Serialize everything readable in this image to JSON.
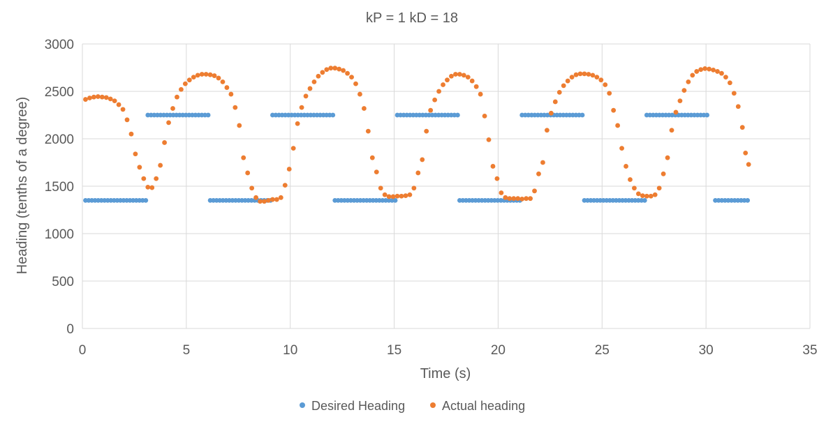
{
  "chart_data": {
    "type": "scatter",
    "title": "kP = 1 kD = 18",
    "xlabel": "Time (s)",
    "ylabel": "Heading (tenths of a degree)",
    "xlim": [
      0,
      35
    ],
    "ylim": [
      0,
      3000
    ],
    "xticks": [
      0,
      5,
      10,
      15,
      20,
      25,
      30,
      35
    ],
    "yticks": [
      0,
      500,
      1000,
      1500,
      2000,
      2500,
      3000
    ],
    "grid": true,
    "legend_position": "bottom",
    "series": [
      {
        "name": "Desired Heading",
        "color": "#5b9bd5",
        "segments": [
          {
            "x_start": 0.15,
            "x_end": 3.05,
            "y": 1350,
            "count": 20
          },
          {
            "x_start": 3.15,
            "x_end": 6.05,
            "y": 2250,
            "count": 20
          },
          {
            "x_start": 6.15,
            "x_end": 9.05,
            "y": 1350,
            "count": 20
          },
          {
            "x_start": 9.15,
            "x_end": 12.05,
            "y": 2250,
            "count": 20
          },
          {
            "x_start": 12.15,
            "x_end": 15.05,
            "y": 1350,
            "count": 20
          },
          {
            "x_start": 15.15,
            "x_end": 18.05,
            "y": 2250,
            "count": 20
          },
          {
            "x_start": 18.15,
            "x_end": 21.05,
            "y": 1350,
            "count": 20
          },
          {
            "x_start": 21.15,
            "x_end": 24.05,
            "y": 2250,
            "count": 20
          },
          {
            "x_start": 24.15,
            "x_end": 27.05,
            "y": 1350,
            "count": 20
          },
          {
            "x_start": 27.15,
            "x_end": 30.05,
            "y": 2250,
            "count": 20
          },
          {
            "x_start": 30.45,
            "x_end": 32.0,
            "y": 1350,
            "count": 11
          }
        ]
      },
      {
        "name": "Actual heading",
        "color": "#ed7d31",
        "points": [
          [
            0.15,
            2415
          ],
          [
            0.35,
            2430
          ],
          [
            0.55,
            2440
          ],
          [
            0.75,
            2445
          ],
          [
            0.95,
            2440
          ],
          [
            1.15,
            2435
          ],
          [
            1.35,
            2420
          ],
          [
            1.55,
            2400
          ],
          [
            1.75,
            2360
          ],
          [
            1.95,
            2310
          ],
          [
            2.15,
            2200
          ],
          [
            2.35,
            2050
          ],
          [
            2.55,
            1840
          ],
          [
            2.75,
            1700
          ],
          [
            2.95,
            1580
          ],
          [
            3.15,
            1490
          ],
          [
            3.35,
            1485
          ],
          [
            3.55,
            1580
          ],
          [
            3.75,
            1720
          ],
          [
            3.95,
            1960
          ],
          [
            4.15,
            2170
          ],
          [
            4.35,
            2320
          ],
          [
            4.55,
            2440
          ],
          [
            4.75,
            2520
          ],
          [
            4.95,
            2580
          ],
          [
            5.15,
            2620
          ],
          [
            5.35,
            2650
          ],
          [
            5.55,
            2670
          ],
          [
            5.75,
            2680
          ],
          [
            5.95,
            2680
          ],
          [
            6.15,
            2675
          ],
          [
            6.35,
            2665
          ],
          [
            6.55,
            2640
          ],
          [
            6.75,
            2600
          ],
          [
            6.95,
            2540
          ],
          [
            7.15,
            2470
          ],
          [
            7.35,
            2330
          ],
          [
            7.55,
            2140
          ],
          [
            7.75,
            1800
          ],
          [
            7.95,
            1640
          ],
          [
            8.15,
            1480
          ],
          [
            8.35,
            1380
          ],
          [
            8.55,
            1340
          ],
          [
            8.75,
            1340
          ],
          [
            8.95,
            1350
          ],
          [
            9.15,
            1360
          ],
          [
            9.35,
            1360
          ],
          [
            9.55,
            1380
          ],
          [
            9.75,
            1510
          ],
          [
            9.95,
            1680
          ],
          [
            10.15,
            1900
          ],
          [
            10.35,
            2160
          ],
          [
            10.55,
            2330
          ],
          [
            10.75,
            2450
          ],
          [
            10.95,
            2530
          ],
          [
            11.15,
            2600
          ],
          [
            11.35,
            2660
          ],
          [
            11.55,
            2700
          ],
          [
            11.75,
            2730
          ],
          [
            11.95,
            2745
          ],
          [
            12.15,
            2745
          ],
          [
            12.35,
            2735
          ],
          [
            12.55,
            2720
          ],
          [
            12.75,
            2690
          ],
          [
            12.95,
            2650
          ],
          [
            13.15,
            2580
          ],
          [
            13.35,
            2470
          ],
          [
            13.55,
            2320
          ],
          [
            13.75,
            2080
          ],
          [
            13.95,
            1800
          ],
          [
            14.15,
            1650
          ],
          [
            14.35,
            1480
          ],
          [
            14.55,
            1410
          ],
          [
            14.75,
            1390
          ],
          [
            14.95,
            1390
          ],
          [
            15.15,
            1395
          ],
          [
            15.35,
            1395
          ],
          [
            15.55,
            1400
          ],
          [
            15.75,
            1410
          ],
          [
            15.95,
            1480
          ],
          [
            16.15,
            1640
          ],
          [
            16.35,
            1780
          ],
          [
            16.55,
            2080
          ],
          [
            16.75,
            2300
          ],
          [
            16.95,
            2410
          ],
          [
            17.15,
            2500
          ],
          [
            17.35,
            2570
          ],
          [
            17.55,
            2620
          ],
          [
            17.75,
            2660
          ],
          [
            17.95,
            2680
          ],
          [
            18.15,
            2680
          ],
          [
            18.35,
            2670
          ],
          [
            18.55,
            2650
          ],
          [
            18.75,
            2610
          ],
          [
            18.95,
            2550
          ],
          [
            19.15,
            2470
          ],
          [
            19.35,
            2240
          ],
          [
            19.55,
            1990
          ],
          [
            19.75,
            1710
          ],
          [
            19.95,
            1580
          ],
          [
            20.15,
            1430
          ],
          [
            20.35,
            1380
          ],
          [
            20.55,
            1370
          ],
          [
            20.75,
            1370
          ],
          [
            20.95,
            1370
          ],
          [
            21.15,
            1365
          ],
          [
            21.35,
            1370
          ],
          [
            21.55,
            1370
          ],
          [
            21.75,
            1450
          ],
          [
            21.95,
            1630
          ],
          [
            22.15,
            1750
          ],
          [
            22.35,
            2090
          ],
          [
            22.55,
            2270
          ],
          [
            22.75,
            2390
          ],
          [
            22.95,
            2490
          ],
          [
            23.15,
            2560
          ],
          [
            23.35,
            2610
          ],
          [
            23.55,
            2650
          ],
          [
            23.75,
            2675
          ],
          [
            23.95,
            2685
          ],
          [
            24.15,
            2685
          ],
          [
            24.35,
            2680
          ],
          [
            24.55,
            2670
          ],
          [
            24.75,
            2650
          ],
          [
            24.95,
            2620
          ],
          [
            25.15,
            2570
          ],
          [
            25.35,
            2480
          ],
          [
            25.55,
            2300
          ],
          [
            25.75,
            2140
          ],
          [
            25.95,
            1900
          ],
          [
            26.15,
            1710
          ],
          [
            26.35,
            1570
          ],
          [
            26.55,
            1480
          ],
          [
            26.75,
            1420
          ],
          [
            26.95,
            1400
          ],
          [
            27.15,
            1395
          ],
          [
            27.35,
            1395
          ],
          [
            27.55,
            1410
          ],
          [
            27.75,
            1480
          ],
          [
            27.95,
            1630
          ],
          [
            28.15,
            1800
          ],
          [
            28.35,
            2090
          ],
          [
            28.55,
            2280
          ],
          [
            28.75,
            2400
          ],
          [
            28.95,
            2510
          ],
          [
            29.15,
            2600
          ],
          [
            29.35,
            2670
          ],
          [
            29.55,
            2710
          ],
          [
            29.75,
            2730
          ],
          [
            29.95,
            2740
          ],
          [
            30.15,
            2735
          ],
          [
            30.35,
            2725
          ],
          [
            30.55,
            2710
          ],
          [
            30.75,
            2690
          ],
          [
            30.95,
            2650
          ],
          [
            31.15,
            2590
          ],
          [
            31.35,
            2480
          ],
          [
            31.55,
            2340
          ],
          [
            31.75,
            2120
          ],
          [
            31.9,
            1850
          ],
          [
            32.05,
            1730
          ]
        ]
      }
    ]
  }
}
